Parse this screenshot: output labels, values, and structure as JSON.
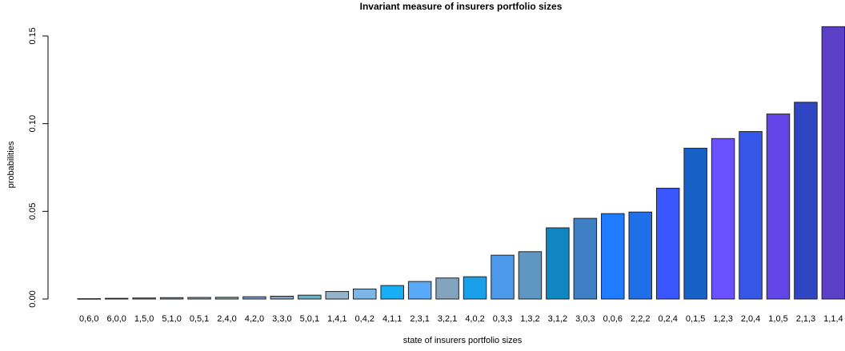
{
  "chart_data": {
    "type": "bar",
    "title": "Invariant measure of insurers portfolio sizes",
    "xlabel": "state of insurers portfolio sizes",
    "ylabel": "probabilities",
    "ylim": [
      0,
      0.155
    ],
    "yticks": [
      "0.00",
      "0.05",
      "0.10",
      "0.15"
    ],
    "grid": false,
    "legend": "none",
    "categories": [
      "0,6,0",
      "6,0,0",
      "1,5,0",
      "5,1,0",
      "0,5,1",
      "2,4,0",
      "4,2,0",
      "3,3,0",
      "5,0,1",
      "1,4,1",
      "0,4,2",
      "4,1,1",
      "2,3,1",
      "3,2,1",
      "4,0,2",
      "0,3,3",
      "1,3,2",
      "3,1,2",
      "3,0,3",
      "0,0,6",
      "2,2,2",
      "0,2,4",
      "0,1,5",
      "1,2,3",
      "2,0,4",
      "1,0,5",
      "2,1,3",
      "1,1,4"
    ],
    "values": [
      0.0002,
      0.0004,
      0.0006,
      0.0008,
      0.0009,
      0.001,
      0.0013,
      0.0016,
      0.0022,
      0.0043,
      0.0057,
      0.0077,
      0.01,
      0.012,
      0.0127,
      0.025,
      0.027,
      0.0406,
      0.046,
      0.0487,
      0.0496,
      0.0632,
      0.086,
      0.0915,
      0.0955,
      0.1055,
      0.1122,
      0.1553
    ],
    "colors": [
      "#8a9bb5",
      "#7f95b0",
      "#8a9cb8",
      "#86a3b8",
      "#8eaaba",
      "#8fb0b4",
      "#7d9fd0",
      "#82a5cc",
      "#6fb2c8",
      "#93b4cc",
      "#7db6e6",
      "#18aef6",
      "#5aa8f8",
      "#82a4bc",
      "#1aa0e8",
      "#4d99ea",
      "#5e97c2",
      "#0f86c2",
      "#3f7fc4",
      "#1f7bff",
      "#1f6fe8",
      "#3a56ff",
      "#1760c8",
      "#6a50ff",
      "#3656e8",
      "#6245e6",
      "#2f46c2",
      "#5b3fc6"
    ]
  }
}
